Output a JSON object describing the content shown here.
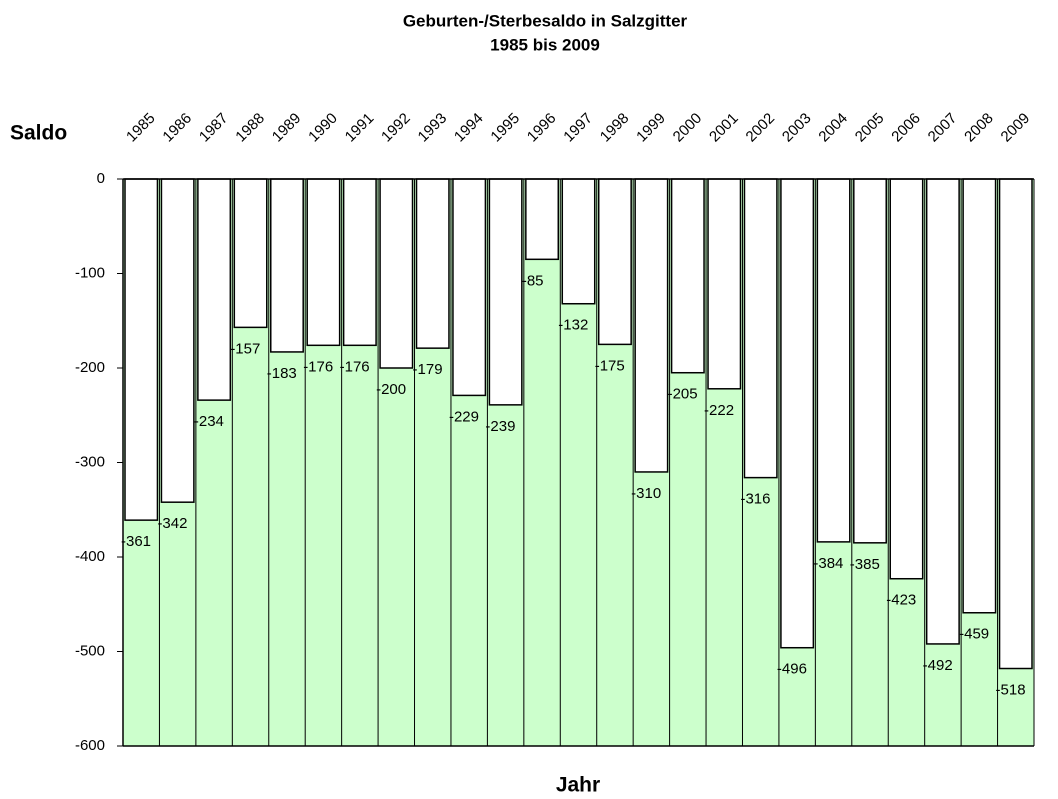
{
  "chart_data": {
    "type": "bar",
    "title": "Geburten-/Sterbesaldo in Salzgitter",
    "subtitle": "1985 bis 2009",
    "y_label": "Saldo",
    "x_label": "Jahr",
    "categories": [
      "1985",
      "1986",
      "1987",
      "1988",
      "1989",
      "1990",
      "1991",
      "1992",
      "1993",
      "1994",
      "1995",
      "1996",
      "1997",
      "1998",
      "1999",
      "2000",
      "2001",
      "2002",
      "2003",
      "2004",
      "2005",
      "2006",
      "2007",
      "2008",
      "2009"
    ],
    "values": [
      -361,
      -342,
      -234,
      -157,
      -183,
      -176,
      -176,
      -200,
      -179,
      -229,
      -239,
      -85,
      -132,
      -175,
      -310,
      -205,
      -222,
      -316,
      -496,
      -384,
      -385,
      -423,
      -492,
      -459,
      -518
    ],
    "color": "#ffffff",
    "plot_background": "#ccffcc",
    "ylim": [
      -600,
      0
    ],
    "yticks": [
      -600,
      -500,
      -400,
      -300,
      -200,
      -100,
      0
    ]
  }
}
